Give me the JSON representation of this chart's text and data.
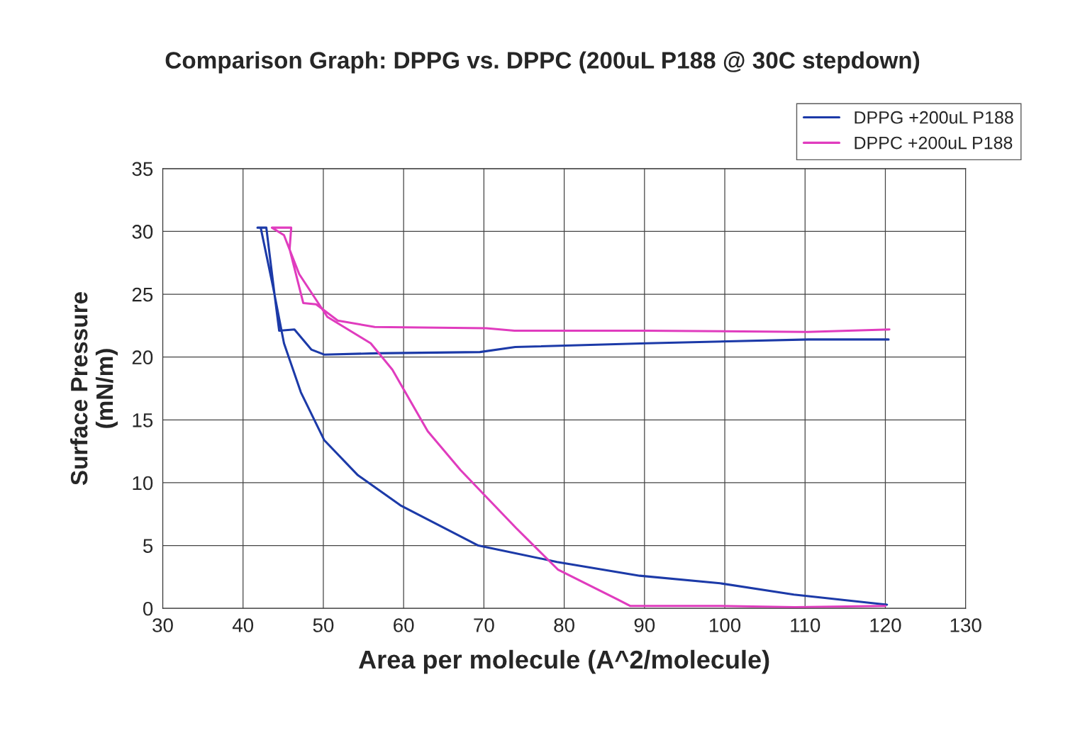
{
  "chart_data": {
    "type": "line",
    "title": "Comparison Graph: DPPG vs. DPPC (200uL P188 @ 30C stepdown)",
    "xlabel": "Area per molecule (A^2/molecule)",
    "ylabel": "Surface Pressure\n(mN/m)",
    "xlim": [
      30,
      130
    ],
    "xticks": [
      30,
      40,
      50,
      60,
      70,
      80,
      90,
      100,
      110,
      120,
      130
    ],
    "ylim": [
      0,
      35
    ],
    "yticks": [
      0,
      5,
      10,
      15,
      20,
      25,
      30,
      35
    ],
    "grid": true,
    "legend": "top right",
    "marker": "none",
    "line_style": "solid",
    "series": [
      {
        "name": "DPPG +200uL P188",
        "color": "#1c3aa8",
        "x": [
          120.2,
          108.6,
          99.4,
          89.4,
          79.1,
          69.3,
          59.6,
          54.3,
          50.1,
          47.2,
          45.1,
          43.7,
          42.2,
          41.8,
          42.9,
          43.9,
          44.5,
          46.4,
          48.5,
          50.1,
          56.6,
          69.5,
          73.9,
          90.3,
          110.4,
          120.4
        ],
        "values": [
          0.3,
          1.1,
          2.0,
          2.6,
          3.7,
          5.0,
          8.2,
          10.6,
          13.4,
          17.2,
          21.1,
          25.7,
          30.3,
          30.3,
          30.3,
          25.1,
          22.1,
          22.2,
          20.6,
          20.2,
          20.3,
          20.4,
          20.8,
          21.1,
          21.4,
          21.4
        ]
      },
      {
        "name": "DPPC +200uL P188",
        "color": "#e03cbe",
        "x": [
          120.0,
          108.7,
          99.5,
          88.2,
          86.7,
          79.2,
          74.0,
          67.1,
          63.0,
          58.6,
          55.9,
          50.5,
          47.0,
          45.1,
          43.6,
          46.0,
          45.8,
          47.5,
          49.1,
          51.8,
          56.4,
          70.3,
          73.8,
          90.2,
          110.3,
          120.5
        ],
        "values": [
          0.2,
          0.1,
          0.2,
          0.2,
          0.7,
          3.1,
          6.4,
          11.0,
          14.1,
          19.0,
          21.1,
          23.2,
          26.6,
          29.7,
          30.3,
          30.3,
          28.6,
          24.3,
          24.2,
          22.9,
          22.4,
          22.3,
          22.1,
          22.1,
          22.0,
          22.2
        ]
      }
    ]
  }
}
